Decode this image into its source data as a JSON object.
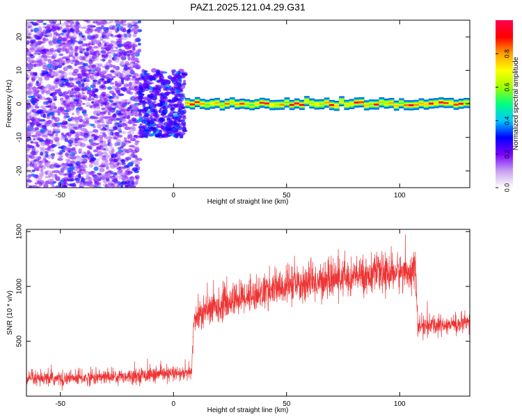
{
  "figure_title": "PAZ1.2025.121.04.29.G31",
  "chart_data": [
    {
      "type": "heatmap",
      "title": "PAZ1.2025.121.04.29.G31",
      "xlabel": "Height of straight line (km)",
      "ylabel": "Frequency (Hz)",
      "xlim": [
        -65,
        131
      ],
      "ylim": [
        -25,
        25
      ],
      "x_ticks": [
        -50,
        0,
        50,
        100
      ],
      "y_ticks": [
        -20,
        -10,
        0,
        10,
        20
      ],
      "colorbar": {
        "label": "Normalized spectral amplitude",
        "range": [
          0,
          1
        ],
        "ticks": [
          0.0,
          0.2,
          0.4,
          0.6,
          0.8
        ],
        "colormap": [
          "#ffffff",
          "#c8a0f0",
          "#7a00ff",
          "#0000ff",
          "#00c8ff",
          "#00ff80",
          "#a0ff00",
          "#ffff00",
          "#ffa000",
          "#ff0000",
          "#ff0050"
        ]
      },
      "regions": [
        {
          "name": "scattered noise",
          "x_range": [
            -65,
            -15
          ],
          "freq_range": [
            -25,
            25
          ],
          "amplitude_range": [
            0.1,
            0.3
          ]
        },
        {
          "name": "transition",
          "x_range": [
            -15,
            5
          ],
          "freq_range": [
            -10,
            10
          ],
          "amplitude_range": [
            0.2,
            0.35
          ]
        },
        {
          "name": "narrow band",
          "x_range": [
            5,
            131
          ],
          "freq_center": 0,
          "freq_halfwidth": 1.5,
          "amplitude_range": [
            0.5,
            1.0
          ]
        }
      ],
      "grid": false
    },
    {
      "type": "line",
      "xlabel": "Height of straight line (km)",
      "ylabel": "SNR (10 * v/v)",
      "xlim": [
        -65,
        131
      ],
      "ylim": [
        0,
        1520
      ],
      "x_ticks": [
        -50,
        0,
        50,
        100
      ],
      "y_ticks": [
        500,
        1000,
        1500
      ],
      "color": "#ee3333",
      "series": [
        {
          "x": [
            -65,
            -50,
            -40,
            -30,
            -20,
            -10,
            0,
            8,
            9,
            15,
            20,
            30,
            40,
            50,
            60,
            70,
            80,
            90,
            100,
            107,
            108,
            110,
            120,
            131
          ],
          "y": [
            150,
            160,
            165,
            175,
            185,
            195,
            200,
            210,
            700,
            780,
            820,
            900,
            950,
            1000,
            1030,
            1060,
            1090,
            1110,
            1130,
            1150,
            630,
            640,
            650,
            660
          ],
          "noise_amplitude": [
            60,
            60,
            60,
            60,
            60,
            60,
            60,
            60,
            120,
            130,
            130,
            140,
            140,
            150,
            150,
            150,
            150,
            150,
            150,
            150,
            80,
            80,
            80,
            80
          ]
        }
      ],
      "grid": false
    }
  ]
}
